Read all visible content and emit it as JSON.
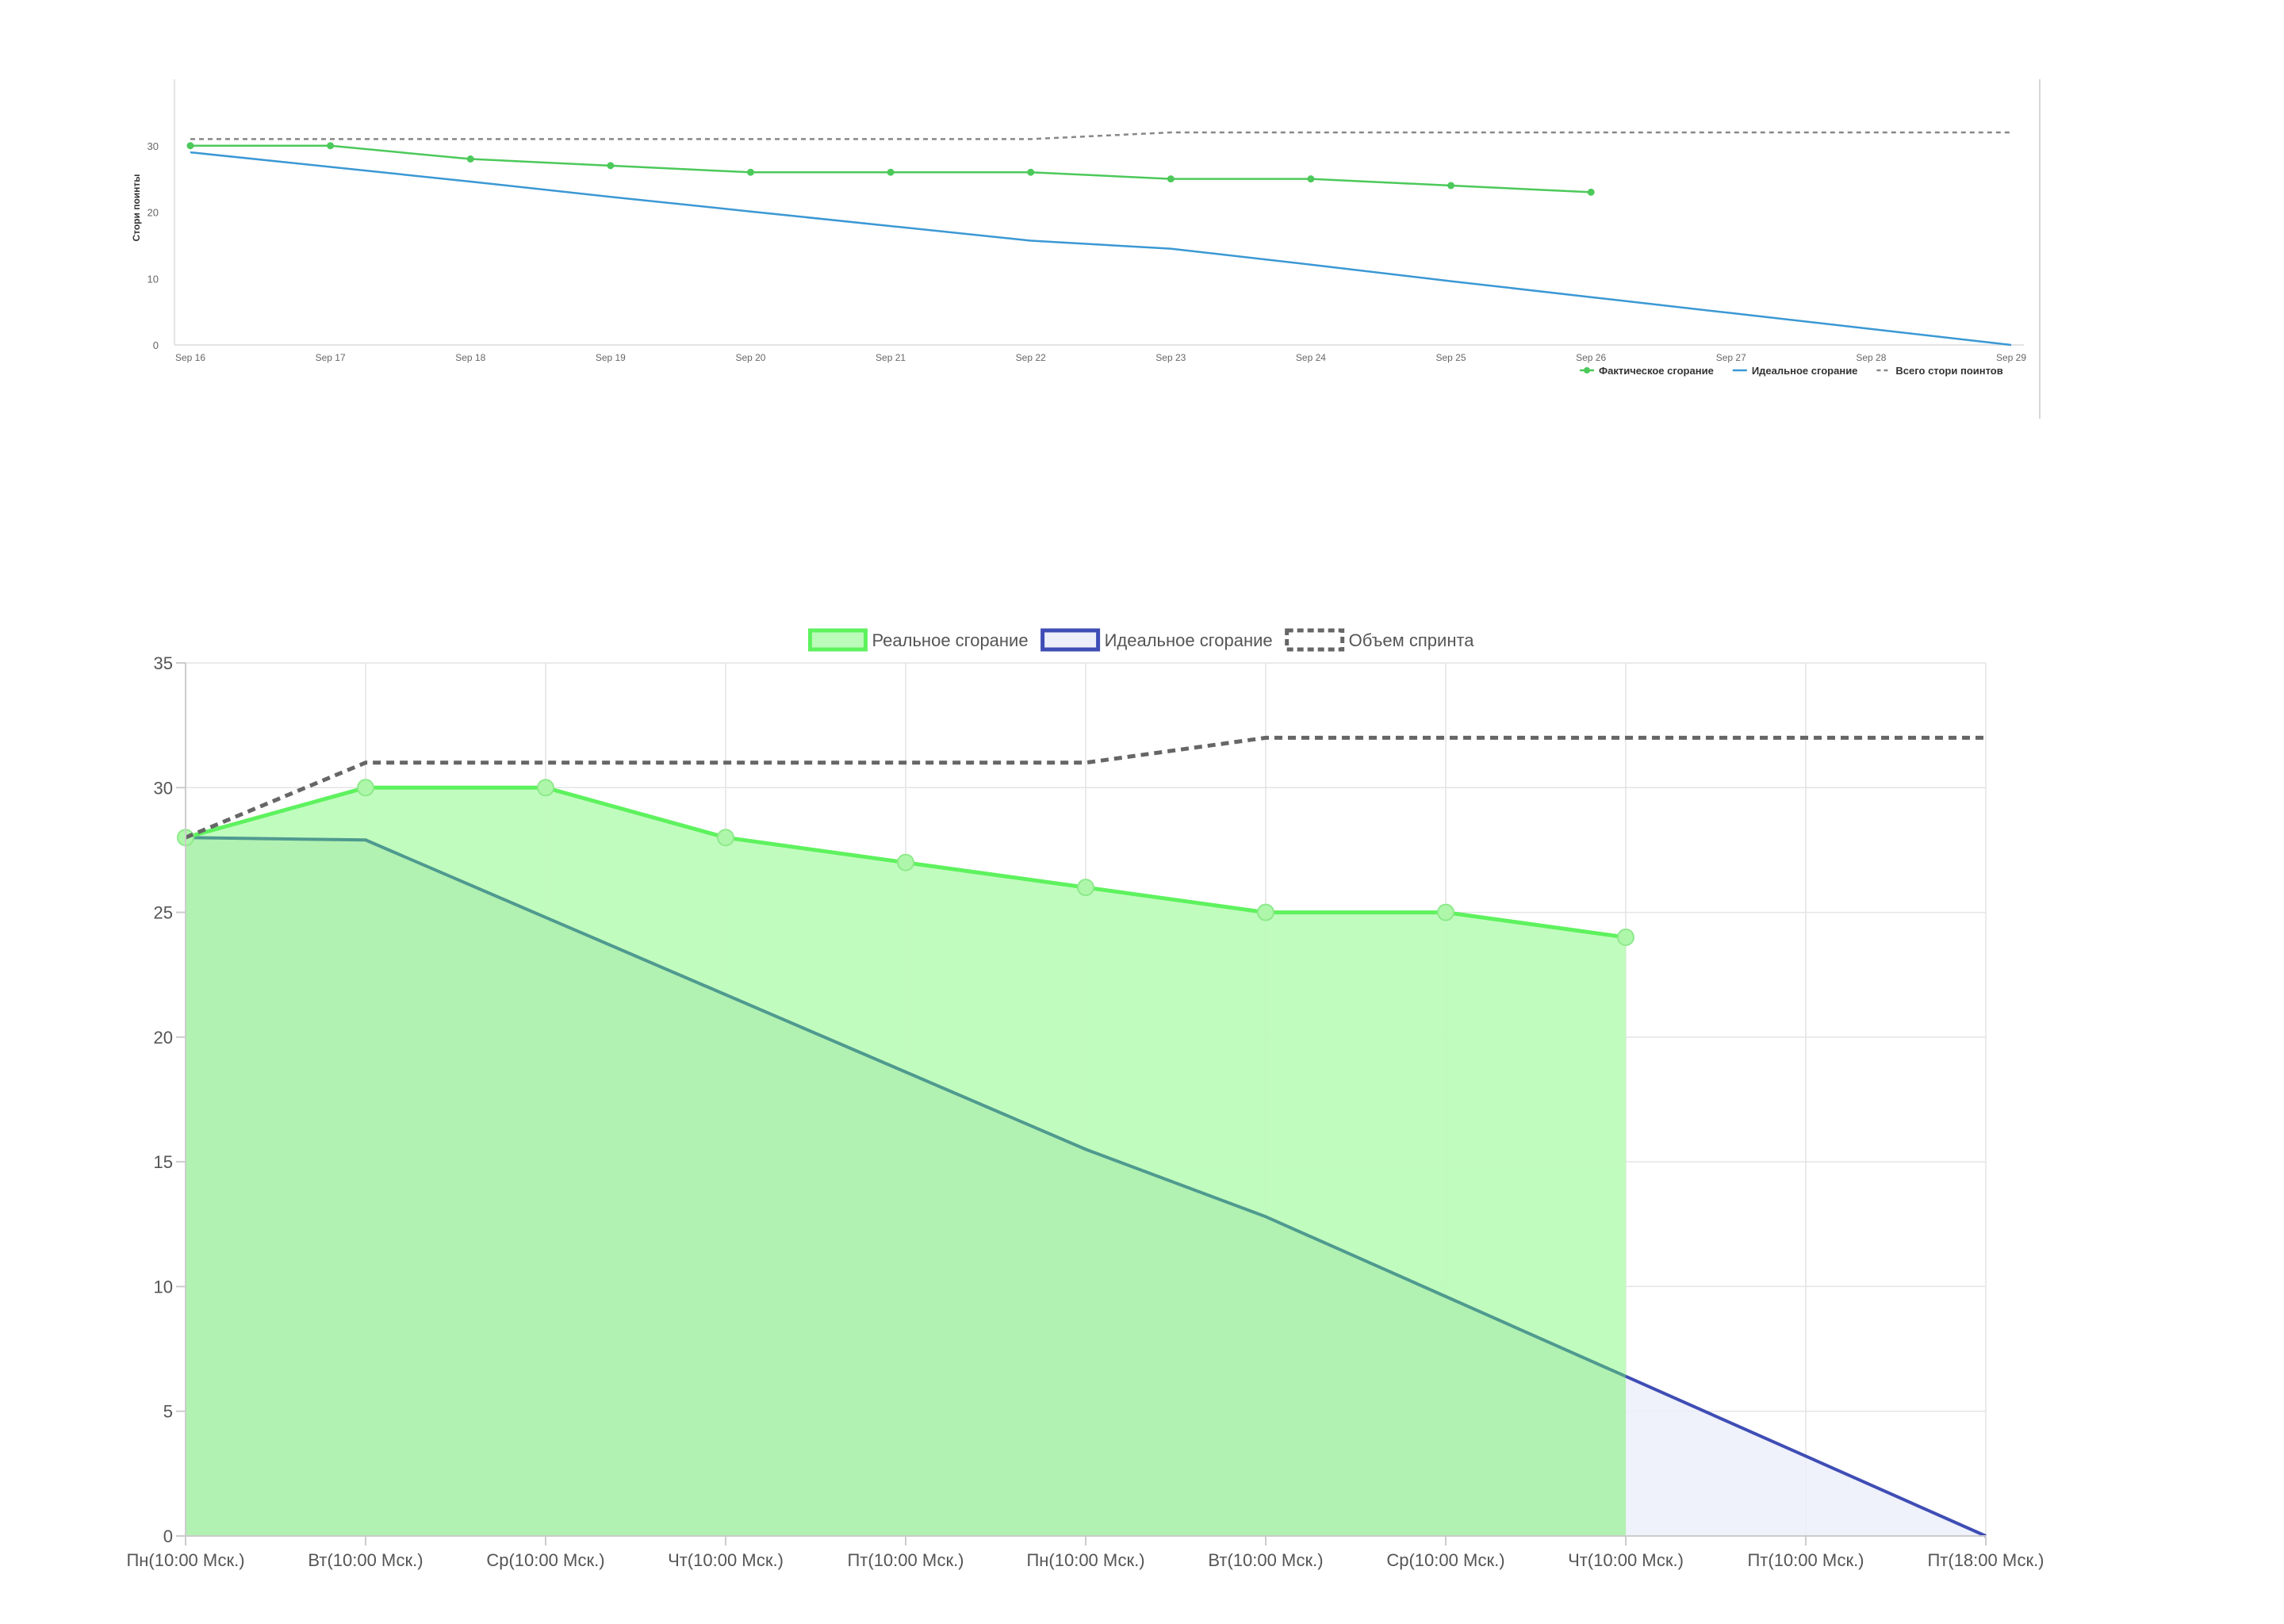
{
  "chart_data": [
    {
      "type": "line",
      "ylabel": "Стори поинты",
      "xlabel": "",
      "categories": [
        "Sep 16",
        "Sep 17",
        "Sep 18",
        "Sep 19",
        "Sep 20",
        "Sep 21",
        "Sep 22",
        "Sep 23",
        "Sep 24",
        "Sep 25",
        "Sep 26",
        "Sep 27",
        "Sep 28",
        "Sep 29"
      ],
      "ylim": [
        0,
        40
      ],
      "yticks": [
        0,
        10,
        20,
        30
      ],
      "grid": false,
      "legend_position": "bottom-right",
      "series": [
        {
          "name": "Фактическое сгорание",
          "style": "line-with-markers",
          "color": "#4cc95a",
          "values": [
            30,
            30,
            28,
            27,
            26,
            26,
            26,
            25,
            25,
            24,
            23,
            null,
            null,
            null
          ]
        },
        {
          "name": "Идеальное сгорание",
          "style": "line",
          "color": "#3b98d4",
          "values": [
            29,
            26.8,
            24.6,
            22.3,
            20.1,
            17.9,
            15.7,
            14.5,
            12.1,
            9.6,
            7.2,
            4.8,
            2.4,
            0
          ]
        },
        {
          "name": "Всего стори поинтов",
          "style": "dashed",
          "color": "#888888",
          "values": [
            31,
            31,
            31,
            31,
            31,
            31,
            31,
            32,
            32,
            32,
            32,
            32,
            32,
            32
          ]
        }
      ]
    },
    {
      "type": "area",
      "xlabel": "",
      "ylabel": "",
      "categories": [
        "Пн(10:00 Мск.)",
        "Вт(10:00 Мск.)",
        "Ср(10:00 Мск.)",
        "Чт(10:00 Мск.)",
        "Пт(10:00 Мск.)",
        "Пн(10:00 Мск.)",
        "Вт(10:00 Мск.)",
        "Ср(10:00 Мск.)",
        "Чт(10:00 Мск.)",
        "Пт(10:00 Мск.)",
        "Пт(18:00 Мск.)"
      ],
      "ylim": [
        0,
        35
      ],
      "yticks": [
        0,
        5,
        10,
        15,
        20,
        25,
        30,
        35
      ],
      "grid": true,
      "legend_position": "top",
      "series": [
        {
          "name": "Реальное сгорание",
          "style": "area-with-markers",
          "color": "#5ef25e",
          "fill": "#bcfcba",
          "values": [
            28,
            30,
            30,
            28,
            27,
            26,
            25,
            25,
            24,
            null,
            null
          ]
        },
        {
          "name": "Идеальное сгорание",
          "style": "area",
          "color": "#3f4db5",
          "fill": "#eceefa",
          "values": [
            28,
            27.9,
            24.8,
            21.7,
            18.6,
            15.5,
            12.8,
            9.6,
            6.4,
            3.2,
            0
          ]
        },
        {
          "name": "Объем спринта",
          "style": "dashed",
          "color": "#666666",
          "values": [
            28,
            31,
            31,
            31,
            31,
            31,
            32,
            32,
            32,
            32,
            32
          ]
        }
      ]
    }
  ]
}
